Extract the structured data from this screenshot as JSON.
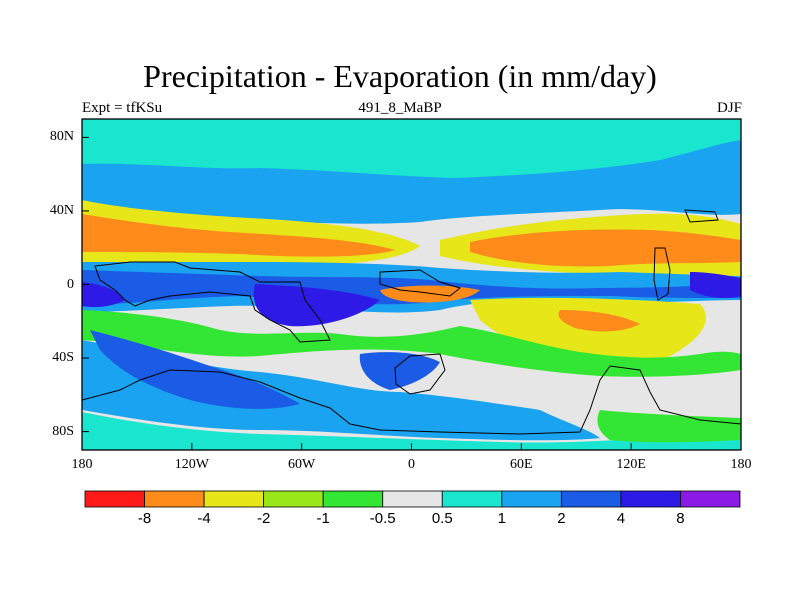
{
  "title": "Precipitation - Evaporation (in mm/day)",
  "subtitle_left": "Expt = tfKSu",
  "subtitle_center": "491_8_MaBP",
  "subtitle_right": "DJF",
  "lat_labels": [
    "80N",
    "40N",
    "0",
    "40S",
    "80S"
  ],
  "lon_labels": [
    "180",
    "120W",
    "60W",
    "0",
    "60E",
    "120E",
    "180"
  ],
  "colorbar": {
    "colors": [
      "#ff1a1a",
      "#ff8c1a",
      "#e6e619",
      "#99e619",
      "#33e633",
      "#e6e6e6",
      "#1ae6d0",
      "#1aa3f0",
      "#1a5ce6",
      "#2e1ae6",
      "#8c1ae6"
    ],
    "labels": [
      "-8",
      "-4",
      "-2",
      "-1",
      "-0.5",
      "0.5",
      "1",
      "2",
      "4",
      "8"
    ]
  },
  "palette": {
    "grey": "#e6e6e6",
    "cyan": "#1ae6d0",
    "sky": "#1aa3f0",
    "blue": "#1a5ce6",
    "indigo": "#2e1ae6",
    "violet": "#8c1ae6",
    "green": "#33e633",
    "lime": "#99e619",
    "yellow": "#e6e619",
    "orange": "#ff8c1a",
    "red": "#ff1a1a"
  }
}
